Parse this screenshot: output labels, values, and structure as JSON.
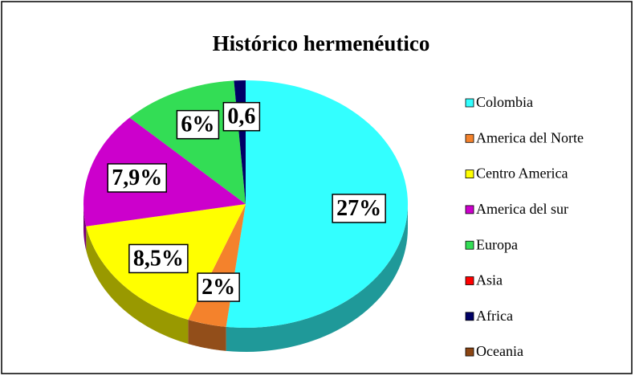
{
  "chart_data": {
    "type": "pie",
    "title": "Histórico hermenéutico",
    "categories": [
      "Colombia",
      "America del Norte",
      "Centro America",
      "America del sur",
      "Europa",
      "Asia",
      "Africa",
      "Oceania"
    ],
    "values": [
      27,
      2,
      8.5,
      7.9,
      6,
      0,
      0.6,
      0
    ],
    "value_labels": [
      "27%",
      "2%",
      "8,5%",
      "7,9%",
      "6%",
      null,
      "0,6",
      null
    ],
    "colors": [
      "#33ffff",
      "#f4822c",
      "#ffff00",
      "#cc00cc",
      "#33dd55",
      "#ff0000",
      "#000066",
      "#8b4513"
    ],
    "legend": "right"
  }
}
